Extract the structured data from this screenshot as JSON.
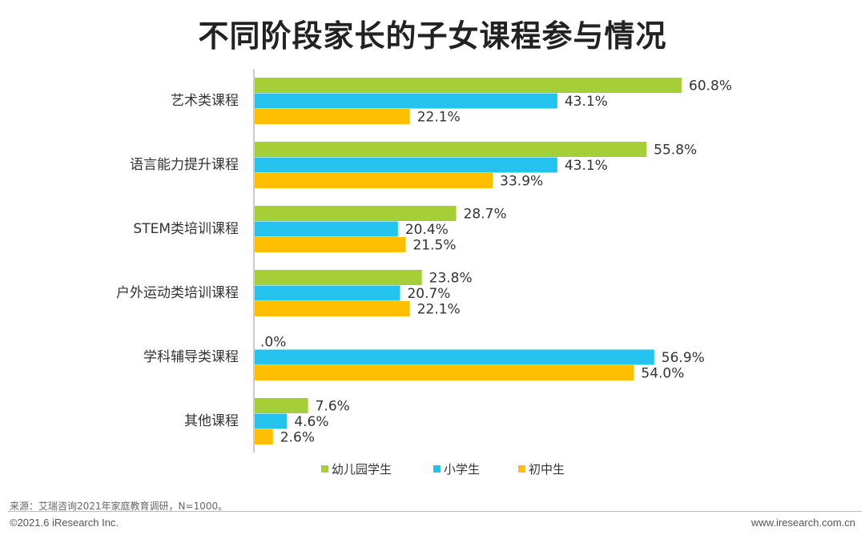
{
  "colors": {
    "kindergarten": "#a6ce39",
    "primary": "#22c3ee",
    "middle": "#fdbf00"
  },
  "chart_data": {
    "type": "bar",
    "orientation": "horizontal",
    "title": "不同阶段家长的子女课程参与情况",
    "categories": [
      "艺术类课程",
      "语言能力提升课程",
      "STEM类培训课程",
      "户外运动类培训课程",
      "学科辅导类课程",
      "其他课程"
    ],
    "series": [
      {
        "name": "幼儿园学生",
        "color": "#a6ce39",
        "values": [
          60.8,
          55.8,
          28.7,
          23.8,
          0.0,
          7.6
        ],
        "labels": [
          "60.8%",
          "55.8%",
          "28.7%",
          "23.8%",
          ".0%",
          "7.6%"
        ]
      },
      {
        "name": "小学生",
        "color": "#22c3ee",
        "values": [
          43.1,
          43.1,
          20.4,
          20.7,
          56.9,
          4.6
        ],
        "labels": [
          "43.1%",
          "43.1%",
          "20.4%",
          "20.7%",
          "56.9%",
          "4.6%"
        ]
      },
      {
        "name": "初中生",
        "color": "#fdbf00",
        "values": [
          22.1,
          33.9,
          21.5,
          22.1,
          54.0,
          2.6
        ],
        "labels": [
          "22.1%",
          "33.9%",
          "21.5%",
          "22.1%",
          "54.0%",
          "2.6%"
        ]
      }
    ],
    "xlim": [
      0,
      60.8
    ],
    "grid": false,
    "legend_position": "bottom"
  },
  "footer": {
    "source": "来源：艾瑞咨询2021年家庭教育调研，N=1000。",
    "copyright": "©2021.6 iResearch Inc.",
    "website": "www.iresearch.com.cn"
  }
}
